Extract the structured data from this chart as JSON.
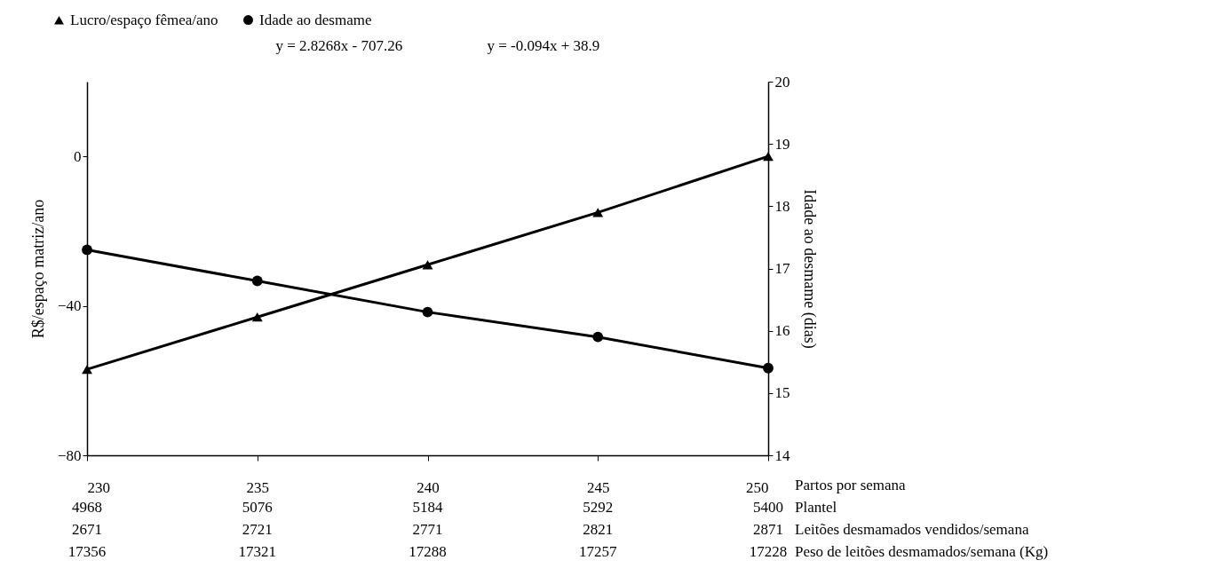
{
  "chart_data": {
    "type": "line",
    "xlabel": "Partos por semana",
    "ylabel": "R$/espaço matriz/ano",
    "y2label": "Idade ao desmame (dias)",
    "x": [
      230,
      235,
      240,
      245,
      250
    ],
    "xlim": [
      230,
      250
    ],
    "xticks": [
      230,
      235,
      240,
      245,
      250
    ],
    "ylim": [
      -80,
      20
    ],
    "yticks": [
      -80,
      -40,
      0
    ],
    "y2lim": [
      14,
      20
    ],
    "y2ticks": [
      14,
      15,
      16,
      17,
      18,
      19,
      20
    ],
    "series": [
      {
        "name": "Lucro/espaço fêmea/ano",
        "color": "#000000",
        "marker": "triangle",
        "values": [
          -57,
          -43,
          -29,
          -15,
          0
        ]
      },
      {
        "name": "Idade ao desmame",
        "color": "#000000",
        "marker": "circle",
        "axis": "y2",
        "values": [
          17.3,
          16.8,
          16.3,
          15.9,
          15.4
        ]
      }
    ],
    "legend": "top left",
    "grid": false,
    "line_style": "solid",
    "annotations": [
      "y = 2.8268x - 707.26",
      "y = -0.094x + 38.9",
      "Plantel",
      "4968",
      "5076",
      "5184",
      "5292",
      "5400",
      "Leitões desmamados vendidos/semana",
      "2671",
      "2721",
      "2771",
      "2821",
      "2871",
      "Peso de leitões desmamados/semana (Kg)",
      "17356",
      "17321",
      "17288",
      "17257",
      "17228"
    ]
  }
}
